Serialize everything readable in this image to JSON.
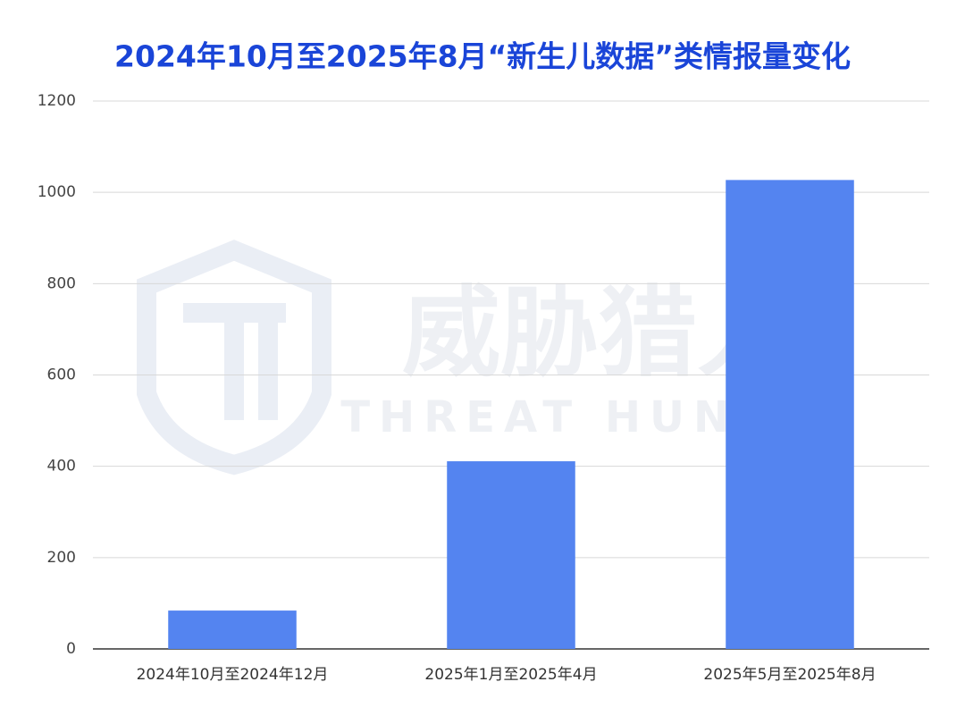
{
  "chart_data": {
    "type": "bar",
    "title": "2024年10月至2025年8月“新生儿数据”类情报量变化",
    "categories": [
      "2024年10月至2024年12月",
      "2025年1月至2025年4月",
      "2025年5月至2025年8月"
    ],
    "values": [
      84,
      411,
      1027
    ],
    "color": "#5484f0",
    "ylim": [
      0,
      1200
    ],
    "yticks": [
      0,
      200,
      400,
      600,
      800,
      1000,
      1200
    ],
    "grid": true,
    "watermark": [
      "威胁猎人",
      "THREAT HUNTER"
    ]
  }
}
